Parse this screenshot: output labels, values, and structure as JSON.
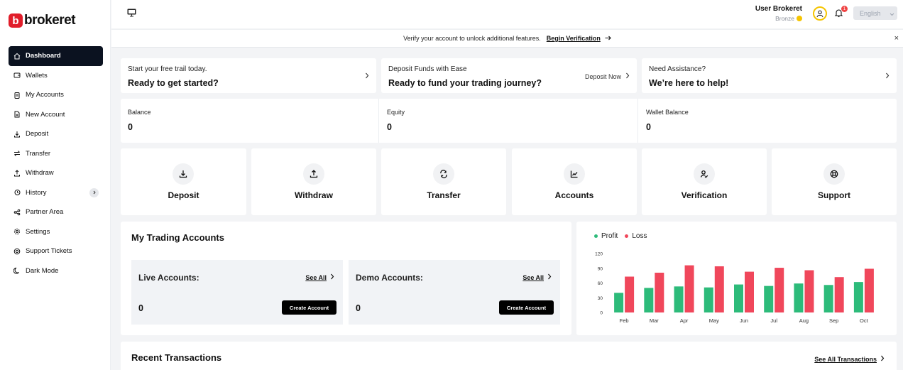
{
  "brand": {
    "name": "brokeret",
    "mark": "b"
  },
  "sidebar": {
    "items": [
      {
        "label": "Dashboard",
        "icon": "home-icon"
      },
      {
        "label": "Wallets",
        "icon": "wallet-icon"
      },
      {
        "label": "My Accounts",
        "icon": "clipboard-icon"
      },
      {
        "label": "New Account",
        "icon": "file-plus-icon"
      },
      {
        "label": "Deposit",
        "icon": "download-icon"
      },
      {
        "label": "Transfer",
        "icon": "transfer-icon"
      },
      {
        "label": "Withdraw",
        "icon": "upload-icon"
      },
      {
        "label": "History",
        "icon": "history-icon"
      },
      {
        "label": "Partner Area",
        "icon": "share-icon"
      },
      {
        "label": "Settings",
        "icon": "gear-icon"
      },
      {
        "label": "Support Tickets",
        "icon": "lifebuoy-icon"
      },
      {
        "label": "Dark Mode",
        "icon": "moon-icon"
      }
    ]
  },
  "header": {
    "user_name": "User Brokeret",
    "user_tier": "Bronze",
    "notification_count": "1",
    "language": "English"
  },
  "banner": {
    "text": "Verify your account to unlock additional features.",
    "link": "Begin Verification",
    "close": "×"
  },
  "promos": [
    {
      "top": "Start your free trail today.",
      "main": "Ready to get started?",
      "action": ""
    },
    {
      "top": "Deposit Funds with Ease",
      "main": "Ready to fund your trading journey?",
      "action": "Deposit Now"
    },
    {
      "top": "Need Assistance?",
      "main": "We’re here to help!",
      "action": ""
    }
  ],
  "stats": [
    {
      "label": "Balance",
      "value": "0"
    },
    {
      "label": "Equity",
      "value": "0"
    },
    {
      "label": "Wallet Balance",
      "value": "0"
    }
  ],
  "actions": [
    {
      "label": "Deposit",
      "icon": "download-icon"
    },
    {
      "label": "Withdraw",
      "icon": "upload-icon"
    },
    {
      "label": "Transfer",
      "icon": "transfer-icon"
    },
    {
      "label": "Accounts",
      "icon": "chart-line-icon"
    },
    {
      "label": "Verification",
      "icon": "user-check-icon"
    },
    {
      "label": "Support",
      "icon": "lifebuoy-icon"
    }
  ],
  "trading": {
    "title": "My Trading Accounts",
    "live": {
      "title": "Live Accounts:",
      "see_all": "See All",
      "count": "0",
      "button": "Create Account"
    },
    "demo": {
      "title": "Demo Accounts:",
      "see_all": "See All",
      "count": "0",
      "button": "Create Account"
    }
  },
  "recent": {
    "title": "Recent Transactions",
    "see_all": "See All Transactions"
  },
  "colors": {
    "profit": "#2dbb7a",
    "loss": "#f0475b",
    "accent": "#0b1220",
    "brand": "#e11d2a"
  },
  "chart_data": {
    "type": "bar",
    "categories": [
      "Feb",
      "Mar",
      "Apr",
      "May",
      "Jun",
      "Jul",
      "Aug",
      "Sep",
      "Oct"
    ],
    "series": [
      {
        "name": "Profit",
        "values": [
          40,
          50,
          53,
          51,
          57,
          54,
          59,
          56,
          62
        ]
      },
      {
        "name": "Loss",
        "values": [
          73,
          81,
          96,
          94,
          83,
          91,
          86,
          72,
          89
        ]
      }
    ],
    "yticks": [
      0,
      30,
      60,
      90,
      120
    ],
    "ylim": [
      0,
      120
    ],
    "legend": "top-left",
    "grid": false
  }
}
